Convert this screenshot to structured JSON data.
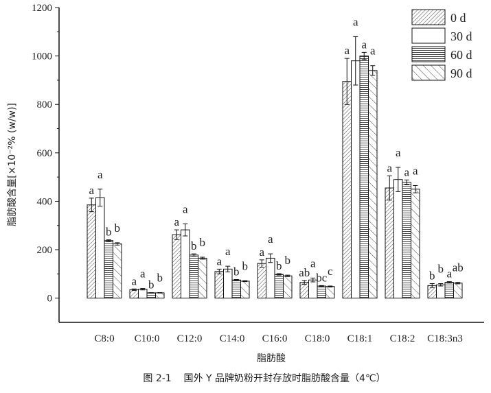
{
  "chart_data": {
    "type": "bar",
    "xlabel": "脂肪酸",
    "ylabel": "脂肪酸含量[×10⁻²% (w/w)]",
    "caption": "图 2-1    国外 Y 品牌奶粉开封存放时脂肪酸含量（4℃）",
    "ylim": [
      -100,
      1200
    ],
    "yticks": [
      0,
      200,
      400,
      600,
      800,
      1000,
      1200
    ],
    "grid": false,
    "legend_position": "top-right",
    "categories": [
      "C8:0",
      "C10:0",
      "C12:0",
      "C14:0",
      "C16:0",
      "C18:0",
      "C18:1",
      "C18:2",
      "C18:3n3"
    ],
    "series": [
      {
        "name": "0 d",
        "pattern": "fine-diagonal",
        "values": [
          385,
          35,
          262,
          110,
          143,
          65,
          895,
          455,
          52
        ],
        "errors": [
          28,
          3,
          20,
          10,
          15,
          8,
          95,
          50,
          8
        ],
        "letters": [
          "a",
          "a",
          "a",
          "a",
          "a",
          "ab",
          "a",
          "a",
          "b"
        ]
      },
      {
        "name": "30 d",
        "pattern": "empty",
        "values": [
          415,
          37,
          282,
          120,
          165,
          75,
          980,
          490,
          55
        ],
        "errors": [
          35,
          3,
          25,
          12,
          18,
          8,
          100,
          50,
          5
        ],
        "letters": [
          "a",
          "a",
          "a",
          "a",
          "a",
          "a",
          "a",
          "a",
          "b"
        ]
      },
      {
        "name": "60 d",
        "pattern": "horizontal",
        "values": [
          238,
          22,
          178,
          75,
          98,
          50,
          1000,
          478,
          65
        ],
        "errors": [
          3,
          1,
          5,
          2,
          3,
          2,
          15,
          10,
          3
        ],
        "letters": [
          "b",
          "b",
          "b",
          "b",
          "b",
          "bc",
          "a",
          "a",
          "a"
        ]
      },
      {
        "name": "90 d",
        "pattern": "wide-back-diagonal",
        "values": [
          224,
          22,
          165,
          70,
          92,
          48,
          940,
          450,
          62
        ],
        "errors": [
          5,
          1,
          4,
          2,
          3,
          2,
          20,
          15,
          3
        ],
        "letters": [
          "b",
          "b",
          "b",
          "b",
          "b",
          "c",
          "a",
          "a",
          "ab"
        ]
      }
    ]
  }
}
